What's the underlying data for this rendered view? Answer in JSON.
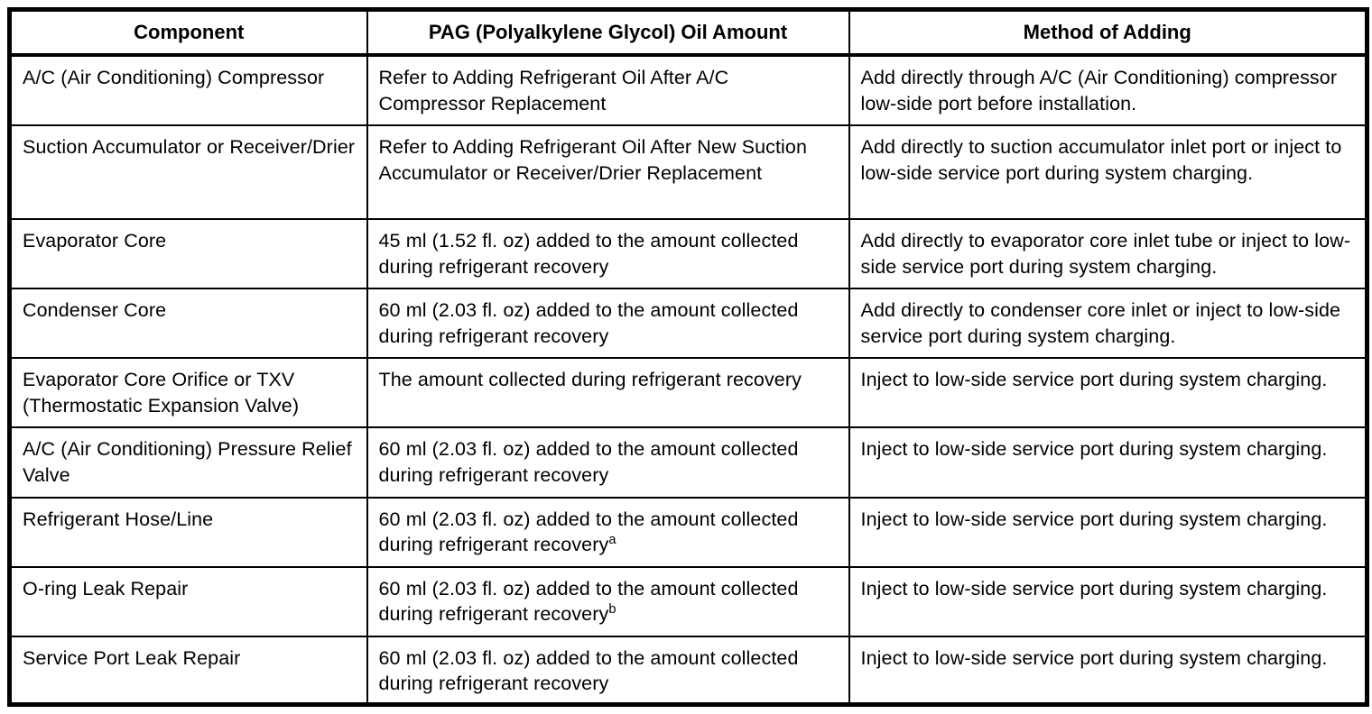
{
  "table": {
    "headers": [
      "Component",
      "PAG (Polyalkylene Glycol) Oil Amount",
      "Method of Adding"
    ],
    "rows": [
      {
        "component": "A/C (Air Conditioning) Compressor",
        "oil_amount": "Refer to Adding Refrigerant Oil After A/C Compressor Replacement",
        "footnote": "",
        "method": "Add directly through A/C (Air Conditioning) compressor low-side port before installation."
      },
      {
        "component": "Suction Accumulator or Receiver/Drier",
        "oil_amount": "Refer to Adding Refrigerant Oil After New Suction Accumulator or Receiver/Drier Replacement",
        "footnote": "",
        "method": "Add directly to suction accumulator inlet port or inject to low-side service port during system charging."
      },
      {
        "component": "Evaporator Core",
        "oil_amount": "45 ml (1.52 fl. oz) added to the amount collected during refrigerant recovery",
        "footnote": "",
        "method": "Add directly to evaporator core inlet tube or inject to low-side service port during system charging."
      },
      {
        "component": "Condenser Core",
        "oil_amount": "60 ml (2.03 fl. oz) added to the amount collected during refrigerant recovery",
        "footnote": "",
        "method": "Add directly to condenser core inlet or inject to low-side service port during system charging."
      },
      {
        "component": "Evaporator Core Orifice or TXV (Thermostatic Expansion Valve)",
        "oil_amount": "The amount collected during refrigerant recovery",
        "footnote": "",
        "method": "Inject to low-side service port during system charging."
      },
      {
        "component": "A/C (Air Conditioning) Pressure Relief Valve",
        "oil_amount": "60 ml (2.03 fl. oz) added to the amount collected during refrigerant recovery",
        "footnote": "",
        "method": "Inject to low-side service port during system charging."
      },
      {
        "component": "Refrigerant Hose/Line",
        "oil_amount": "60 ml (2.03 fl. oz) added to the amount collected during refrigerant recovery",
        "footnote": "a",
        "method": "Inject to low-side service port during system charging."
      },
      {
        "component": "O-ring Leak Repair",
        "oil_amount": "60 ml (2.03 fl. oz) added to the amount collected during refrigerant recovery",
        "footnote": "b",
        "method": "Inject to low-side service port during system charging."
      },
      {
        "component": "Service Port Leak Repair",
        "oil_amount": "60 ml (2.03 fl. oz) added to the amount collected during refrigerant recovery",
        "footnote": "",
        "method": "Inject to low-side service port during system charging."
      }
    ]
  }
}
